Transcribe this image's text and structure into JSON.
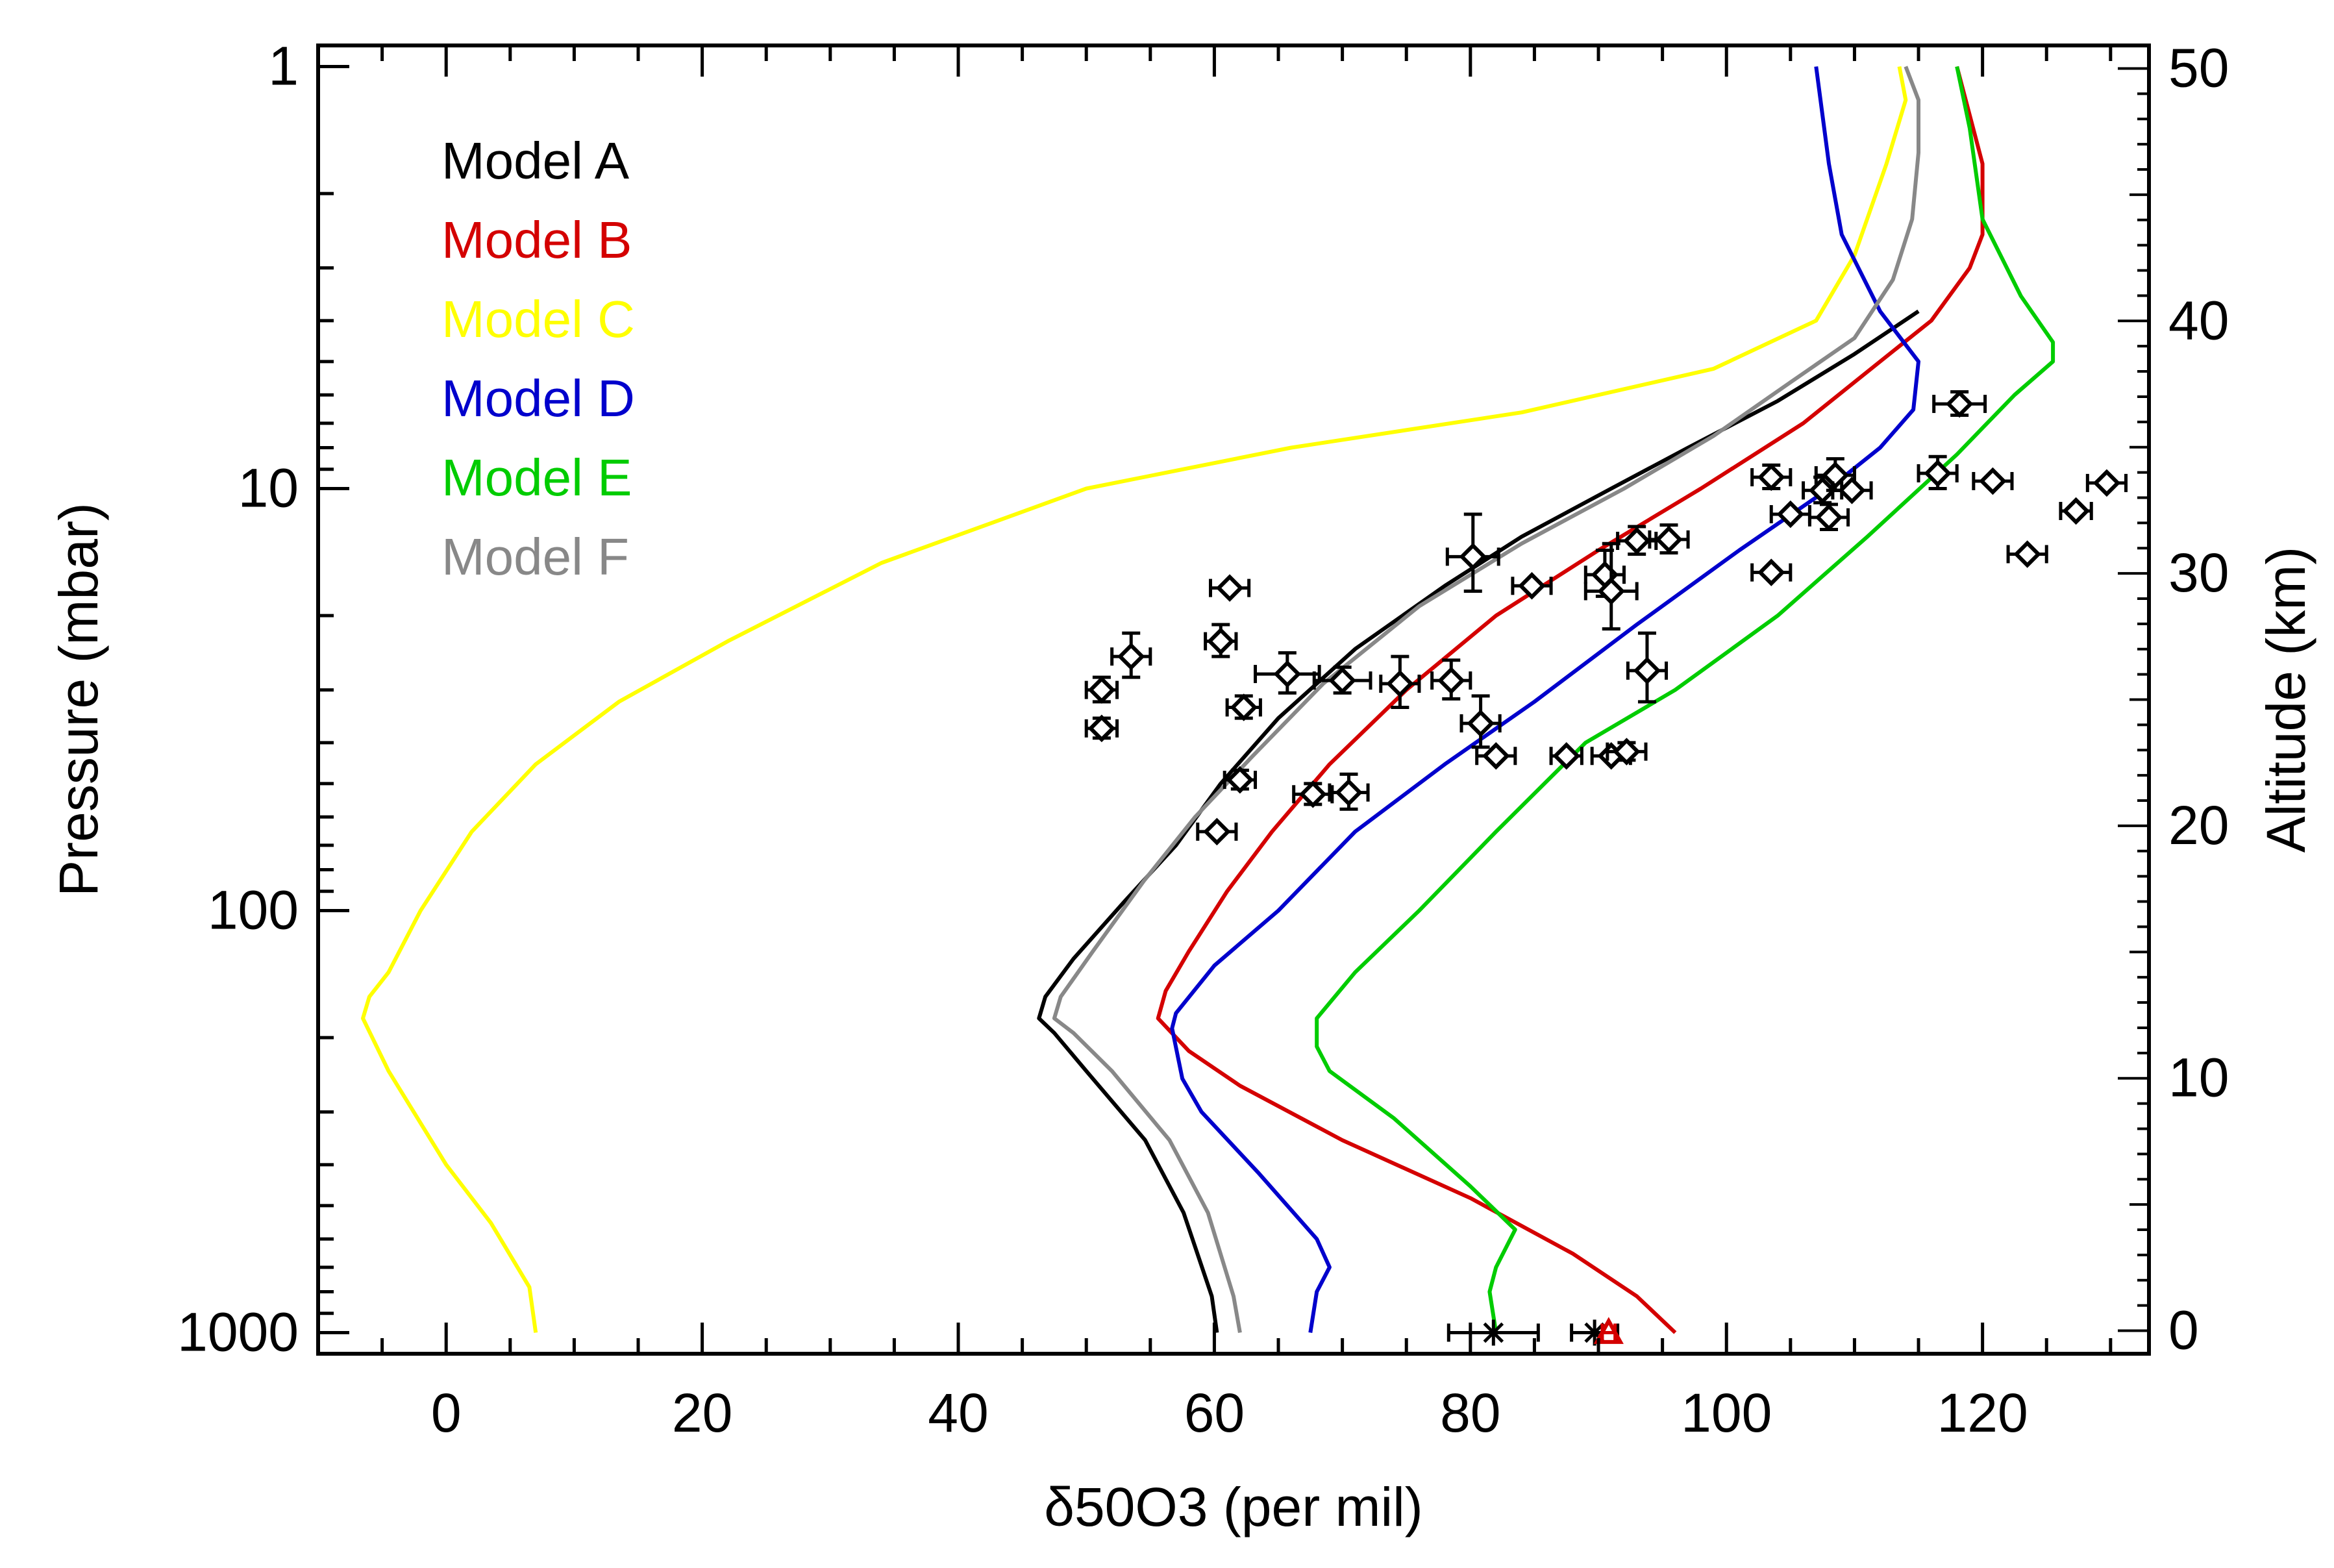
{
  "chart_data": {
    "type": "line",
    "xlabel": "δ50O3  (per mil)",
    "ylabel_left": "Pressure  (mbar)",
    "ylabel_right": "Altitude  (km)",
    "x_range": [
      -10,
      133
    ],
    "y_left_range_mbar": [
      1000,
      1
    ],
    "y_left_scale": "log",
    "y_right_range_km": [
      0,
      50
    ],
    "x_ticks": [
      0,
      20,
      40,
      60,
      80,
      100,
      120
    ],
    "x_tick_labels": [
      "0",
      "20",
      "40",
      "60",
      "80",
      "100",
      "120"
    ],
    "y_left_ticks": [
      1,
      10,
      100,
      1000
    ],
    "y_left_tick_labels": [
      "1",
      "10",
      "100",
      "1000"
    ],
    "y_right_ticks": [
      0,
      10,
      20,
      30,
      40,
      50
    ],
    "y_right_tick_labels": [
      "0",
      "10",
      "20",
      "30",
      "40",
      "50"
    ],
    "legend_position": "top-left",
    "series": [
      {
        "name": "Model A",
        "color": "#000000",
        "points": [
          [
            60.2,
            1000
          ],
          [
            59.8,
            820
          ],
          [
            57.6,
            520
          ],
          [
            54.6,
            350
          ],
          [
            50,
            240
          ],
          [
            47.5,
            195
          ],
          [
            46.3,
            180
          ],
          [
            46.8,
            160
          ],
          [
            49,
            130
          ],
          [
            53,
            95
          ],
          [
            57,
            70
          ],
          [
            60.5,
            50
          ],
          [
            65,
            35
          ],
          [
            71,
            24
          ],
          [
            78,
            17
          ],
          [
            84,
            13
          ],
          [
            91,
            10
          ],
          [
            97,
            8
          ],
          [
            104,
            6.2
          ],
          [
            110,
            4.8
          ],
          [
            115,
            3.8
          ]
        ]
      },
      {
        "name": "Model B",
        "color": "#d40000",
        "points": [
          [
            96,
            1000
          ],
          [
            93,
            820
          ],
          [
            88,
            650
          ],
          [
            80,
            480
          ],
          [
            70,
            350
          ],
          [
            62,
            260
          ],
          [
            58,
            215
          ],
          [
            55.6,
            180
          ],
          [
            56.2,
            155
          ],
          [
            58,
            125
          ],
          [
            61,
            90
          ],
          [
            64.5,
            65
          ],
          [
            69,
            45
          ],
          [
            75,
            30
          ],
          [
            82,
            20
          ],
          [
            90,
            14
          ],
          [
            98,
            10
          ],
          [
            106,
            7
          ],
          [
            112,
            5
          ],
          [
            116,
            4
          ],
          [
            119,
            3
          ],
          [
            120,
            2.5
          ],
          [
            120,
            1.7
          ],
          [
            118,
            1
          ]
        ]
      },
      {
        "name": "Model C",
        "color": "#ffff00",
        "points": [
          [
            7,
            1000
          ],
          [
            6.5,
            780
          ],
          [
            3.5,
            550
          ],
          [
            0,
            400
          ],
          [
            -4.5,
            240
          ],
          [
            -6.5,
            180
          ],
          [
            -6,
            160
          ],
          [
            -4.5,
            140
          ],
          [
            -2,
            100
          ],
          [
            2,
            65
          ],
          [
            7,
            45
          ],
          [
            13.5,
            32
          ],
          [
            22,
            23
          ],
          [
            34,
            15
          ],
          [
            50,
            10
          ],
          [
            66,
            8
          ],
          [
            84,
            6.6
          ],
          [
            99,
            5.2
          ],
          [
            107,
            4
          ],
          [
            110,
            2.8
          ],
          [
            112.5,
            1.7
          ],
          [
            114,
            1.2
          ],
          [
            113.5,
            1
          ]
        ]
      },
      {
        "name": "Model D",
        "color": "#0000cc",
        "points": [
          [
            67.5,
            1000
          ],
          [
            68,
            800
          ],
          [
            69,
            700
          ],
          [
            68,
            600
          ],
          [
            63.5,
            420
          ],
          [
            59,
            300
          ],
          [
            57.5,
            250
          ],
          [
            56.7,
            190
          ],
          [
            57,
            175
          ],
          [
            60,
            135
          ],
          [
            65,
            100
          ],
          [
            71,
            65
          ],
          [
            78,
            45
          ],
          [
            85,
            32
          ],
          [
            93,
            21
          ],
          [
            101,
            14
          ],
          [
            108,
            10
          ],
          [
            112,
            8
          ],
          [
            114.6,
            6.5
          ],
          [
            115,
            5
          ],
          [
            112,
            3.8
          ],
          [
            109,
            2.5
          ],
          [
            108,
            1.7
          ],
          [
            107,
            1
          ]
        ]
      },
      {
        "name": "Model E",
        "color": "#00cc00",
        "points": [
          [
            82,
            1000
          ],
          [
            81.5,
            800
          ],
          [
            82,
            700
          ],
          [
            83.5,
            570
          ],
          [
            80,
            450
          ],
          [
            74,
            310
          ],
          [
            69,
            240
          ],
          [
            68,
            210
          ],
          [
            68,
            180
          ],
          [
            71,
            140
          ],
          [
            76,
            100
          ],
          [
            82,
            65
          ],
          [
            89,
            40
          ],
          [
            96,
            30
          ],
          [
            104,
            20
          ],
          [
            111,
            13
          ],
          [
            118,
            8.3
          ],
          [
            122.5,
            6
          ],
          [
            125.5,
            5
          ],
          [
            125.5,
            4.5
          ],
          [
            123,
            3.5
          ],
          [
            120,
            2.3
          ],
          [
            119,
            1.4
          ],
          [
            118,
            1
          ]
        ]
      },
      {
        "name": "Model F",
        "color": "#888888",
        "points": [
          [
            62,
            1000
          ],
          [
            61.5,
            820
          ],
          [
            59.5,
            520
          ],
          [
            56.5,
            350
          ],
          [
            52,
            240
          ],
          [
            49,
            195
          ],
          [
            47.5,
            180
          ],
          [
            48,
            160
          ],
          [
            50.5,
            125
          ],
          [
            54.5,
            85
          ],
          [
            58.5,
            60
          ],
          [
            63,
            43
          ],
          [
            68.5,
            29
          ],
          [
            76,
            19
          ],
          [
            84,
            13.5
          ],
          [
            92,
            10
          ],
          [
            99,
            7.5
          ],
          [
            105,
            5.6
          ],
          [
            110,
            4.4
          ],
          [
            113,
            3.2
          ],
          [
            114.5,
            2.3
          ],
          [
            115,
            1.6
          ],
          [
            115,
            1.2
          ],
          [
            114,
            1
          ]
        ]
      }
    ],
    "observations": [
      {
        "x": 53.5,
        "p": 25,
        "xerr": 1.5,
        "perr": 3
      },
      {
        "x": 60.5,
        "p": 23,
        "xerr": 1.2,
        "perr": 2
      },
      {
        "x": 61.2,
        "p": 17.2,
        "xerr": 1.5,
        "perr": 0
      },
      {
        "x": 51.2,
        "p": 30,
        "xerr": 1.2,
        "perr": 2
      },
      {
        "x": 51.2,
        "p": 37,
        "xerr": 1.2,
        "perr": 2
      },
      {
        "x": 62.3,
        "p": 33,
        "xerr": 1.3,
        "perr": 2
      },
      {
        "x": 65.7,
        "p": 27.5,
        "xerr": 2.5,
        "perr": 3
      },
      {
        "x": 70,
        "p": 28.5,
        "xerr": 2.2,
        "perr": 2
      },
      {
        "x": 74.5,
        "p": 29,
        "xerr": 1.5,
        "perr": 4
      },
      {
        "x": 78.5,
        "p": 28.5,
        "xerr": 1.5,
        "perr": 3
      },
      {
        "x": 62,
        "p": 49,
        "xerr": 1.2,
        "perr": 2.5
      },
      {
        "x": 60.2,
        "p": 65,
        "xerr": 1.5,
        "perr": 0
      },
      {
        "x": 67.7,
        "p": 53,
        "xerr": 1.5,
        "perr": 3
      },
      {
        "x": 70.5,
        "p": 52.5,
        "xerr": 1.5,
        "perr": 5
      },
      {
        "x": 80.2,
        "p": 14.5,
        "xerr": 2,
        "perr": 3
      },
      {
        "x": 84.8,
        "p": 17,
        "xerr": 1.5,
        "perr": 0
      },
      {
        "x": 80.8,
        "p": 36,
        "xerr": 1.5,
        "perr": 5
      },
      {
        "x": 82,
        "p": 43,
        "xerr": 1.5,
        "perr": 0
      },
      {
        "x": 87.5,
        "p": 43,
        "xerr": 1.2,
        "perr": 0
      },
      {
        "x": 91,
        "p": 43,
        "xerr": 1.5,
        "perr": 0
      },
      {
        "x": 92.2,
        "p": 42,
        "xerr": 1.5,
        "perr": 2
      },
      {
        "x": 90.5,
        "p": 16,
        "xerr": 1.5,
        "perr": 2
      },
      {
        "x": 91,
        "p": 17.5,
        "xerr": 2,
        "perr": 4
      },
      {
        "x": 93,
        "p": 13.3,
        "xerr": 1.5,
        "perr": 1
      },
      {
        "x": 95.5,
        "p": 13.2,
        "xerr": 1.5,
        "perr": 1
      },
      {
        "x": 93.8,
        "p": 27,
        "xerr": 1.5,
        "perr": 5
      },
      {
        "x": 103.5,
        "p": 9.4,
        "xerr": 1.5,
        "perr": 0.6
      },
      {
        "x": 103.5,
        "p": 15.8,
        "xerr": 1.5,
        "perr": 0
      },
      {
        "x": 105,
        "p": 11.5,
        "xerr": 1.5,
        "perr": 0
      },
      {
        "x": 107.5,
        "p": 10.1,
        "xerr": 1.5,
        "perr": 0.7
      },
      {
        "x": 108.5,
        "p": 9.3,
        "xerr": 1.5,
        "perr": 0.8
      },
      {
        "x": 108,
        "p": 11.7,
        "xerr": 1.5,
        "perr": 0.8
      },
      {
        "x": 109.8,
        "p": 10.1,
        "xerr": 1.5,
        "perr": 0
      },
      {
        "x": 116.5,
        "p": 9.2,
        "xerr": 1.5,
        "perr": 0.8
      },
      {
        "x": 120.8,
        "p": 9.6,
        "xerr": 1.5,
        "perr": 0
      },
      {
        "x": 118.2,
        "p": 6.3,
        "xerr": 2,
        "perr": 0.4
      },
      {
        "x": 123.5,
        "p": 14.3,
        "xerr": 1.5,
        "perr": 0
      },
      {
        "x": 127.3,
        "p": 11.3,
        "xerr": 1.2,
        "perr": 0
      },
      {
        "x": 129.7,
        "p": 9.7,
        "xerr": 1.5,
        "perr": 0
      }
    ],
    "surface_points": [
      {
        "x": 81.8,
        "p": 1000,
        "xerr": 3.5,
        "marker": "star",
        "color": "#000000"
      },
      {
        "x": 89.7,
        "p": 1000,
        "xerr": 1.8,
        "marker": "star",
        "color": "#000000"
      },
      {
        "x": 90.8,
        "p": 1000,
        "xerr": 0.5,
        "marker": "triangle",
        "color": "#d40000"
      }
    ]
  }
}
